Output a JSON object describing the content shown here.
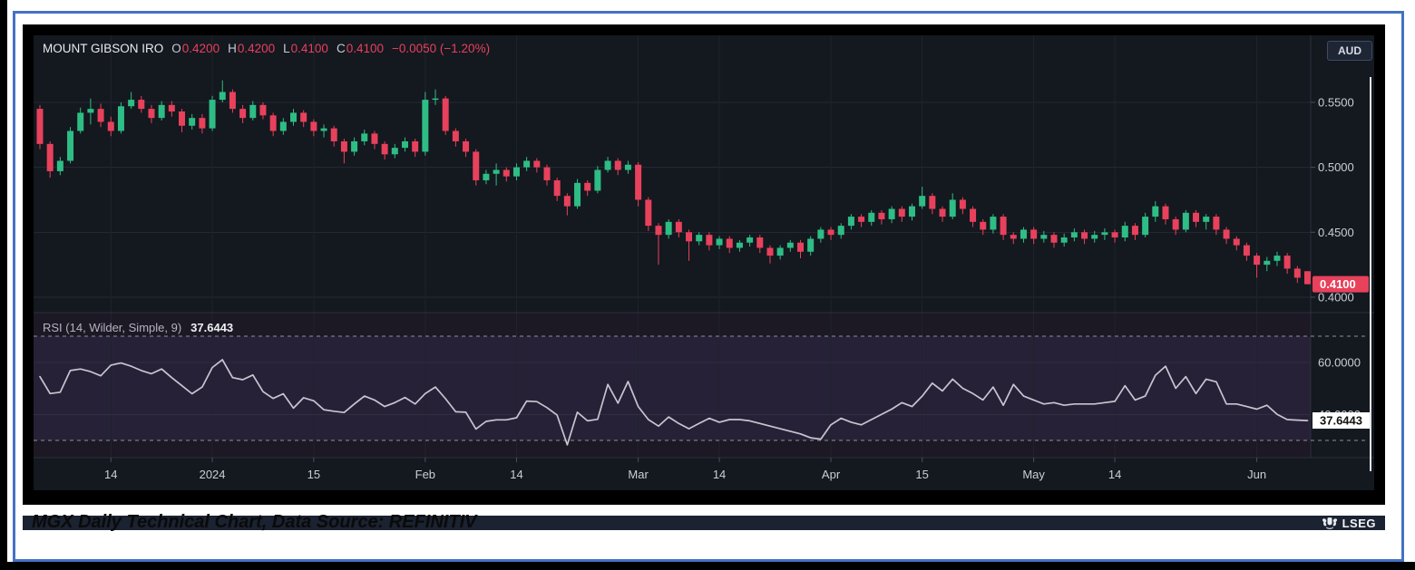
{
  "window": {
    "currency_badge": "AUD"
  },
  "legend": {
    "title": "MOUNT GIBSON IRO",
    "o_label": "O",
    "o_value": "0.4200",
    "h_label": "H",
    "h_value": "0.4200",
    "l_label": "L",
    "l_value": "0.4100",
    "c_label": "C",
    "c_value": "0.4100",
    "change": "−0.0050 (−1.20%)"
  },
  "price_axis": {
    "tick_labels": [
      "0.5500",
      "0.5000",
      "0.4500",
      "0.4000"
    ],
    "last_badge": "0.4100"
  },
  "rsi_panel": {
    "label": "RSI (14, Wilder, Simple, 9)",
    "value_label": "37.6443",
    "axis_tick_60": "60.0000",
    "axis_tick_40": "40.0000",
    "badge": "37.6443"
  },
  "footer": {
    "brand": "LSEG",
    "logo_icon": "lseg-crest-icon"
  },
  "caption": "MGX Daily Technical Chart, Data Source: REFINITIV",
  "colors": {
    "up": "#2ebd85",
    "down": "#e8415c",
    "background": "#14181f",
    "grid": "#232833",
    "vgrid": "#1e232b",
    "separator": "#2a313c",
    "axis_text": "#c9ced8",
    "tick_mark": "#4a505c",
    "rsi_zone_bg": "#1c1824",
    "rsi_band_bg": "#272138",
    "rsi_dash": "#938b9f",
    "rsi_grid": "#332d42",
    "rsi_line": "#c8c5d0",
    "badge_down_bg": "#e8415c",
    "badge_down_text": "#ffffff",
    "rsi_badge_bg": "#ffffff",
    "rsi_badge_text": "#111111",
    "white_rule": "#e2e5ea",
    "border_blue": "#4472c4",
    "frame": "#000000"
  },
  "chart_data": [
    {
      "type": "candlestick",
      "title": "MOUNT GIBSON IRO",
      "currency": "AUD",
      "last_ohlc": {
        "open": 0.42,
        "high": 0.42,
        "low": 0.41,
        "close": 0.41,
        "change": -0.005,
        "change_pct": -1.2
      },
      "ylim": [
        0.393,
        0.6
      ],
      "yticks": [
        {
          "v": 0.55,
          "label": "0.5500"
        },
        {
          "v": 0.5,
          "label": "0.5000"
        },
        {
          "v": 0.45,
          "label": "0.4500"
        },
        {
          "v": 0.4,
          "label": "0.4000"
        }
      ],
      "last_price": 0.41,
      "x_ticks": [
        {
          "label": "14",
          "index": 7
        },
        {
          "label": "2024",
          "index": 17
        },
        {
          "label": "15",
          "index": 27
        },
        {
          "label": "Feb",
          "index": 38
        },
        {
          "label": "14",
          "index": 47
        },
        {
          "label": "Mar",
          "index": 59
        },
        {
          "label": "14",
          "index": 67
        },
        {
          "label": "Apr",
          "index": 78
        },
        {
          "label": "15",
          "index": 87
        },
        {
          "label": "May",
          "index": 98
        },
        {
          "label": "14",
          "index": 106
        },
        {
          "label": "Jun",
          "index": 120
        }
      ],
      "candles": [
        [
          0.545,
          0.548,
          0.514,
          0.518
        ],
        [
          0.518,
          0.52,
          0.492,
          0.497
        ],
        [
          0.497,
          0.508,
          0.494,
          0.505
        ],
        [
          0.505,
          0.531,
          0.503,
          0.528
        ],
        [
          0.528,
          0.546,
          0.526,
          0.542
        ],
        [
          0.542,
          0.553,
          0.533,
          0.545
        ],
        [
          0.545,
          0.549,
          0.531,
          0.535
        ],
        [
          0.535,
          0.539,
          0.524,
          0.528
        ],
        [
          0.528,
          0.55,
          0.526,
          0.547
        ],
        [
          0.547,
          0.558,
          0.545,
          0.552
        ],
        [
          0.552,
          0.555,
          0.542,
          0.545
        ],
        [
          0.545,
          0.548,
          0.534,
          0.538
        ],
        [
          0.538,
          0.551,
          0.536,
          0.548
        ],
        [
          0.548,
          0.551,
          0.539,
          0.543
        ],
        [
          0.543,
          0.545,
          0.527,
          0.532
        ],
        [
          0.532,
          0.541,
          0.529,
          0.538
        ],
        [
          0.538,
          0.541,
          0.526,
          0.53
        ],
        [
          0.53,
          0.555,
          0.528,
          0.552
        ],
        [
          0.552,
          0.567,
          0.55,
          0.558
        ],
        [
          0.558,
          0.56,
          0.542,
          0.545
        ],
        [
          0.545,
          0.548,
          0.534,
          0.538
        ],
        [
          0.538,
          0.551,
          0.536,
          0.548
        ],
        [
          0.548,
          0.55,
          0.537,
          0.54
        ],
        [
          0.54,
          0.542,
          0.524,
          0.528
        ],
        [
          0.528,
          0.538,
          0.525,
          0.535
        ],
        [
          0.535,
          0.545,
          0.532,
          0.542
        ],
        [
          0.542,
          0.544,
          0.531,
          0.535
        ],
        [
          0.535,
          0.537,
          0.524,
          0.528
        ],
        [
          0.528,
          0.533,
          0.523,
          0.53
        ],
        [
          0.53,
          0.532,
          0.516,
          0.52
        ],
        [
          0.52,
          0.522,
          0.503,
          0.512
        ],
        [
          0.512,
          0.523,
          0.509,
          0.52
        ],
        [
          0.52,
          0.529,
          0.517,
          0.526
        ],
        [
          0.526,
          0.528,
          0.514,
          0.518
        ],
        [
          0.518,
          0.52,
          0.506,
          0.51
        ],
        [
          0.51,
          0.518,
          0.507,
          0.515
        ],
        [
          0.515,
          0.523,
          0.512,
          0.52
        ],
        [
          0.52,
          0.522,
          0.508,
          0.512
        ],
        [
          0.512,
          0.558,
          0.509,
          0.552
        ],
        [
          0.552,
          0.56,
          0.548,
          0.553
        ],
        [
          0.553,
          0.555,
          0.525,
          0.528
        ],
        [
          0.528,
          0.53,
          0.516,
          0.52
        ],
        [
          0.52,
          0.522,
          0.508,
          0.512
        ],
        [
          0.512,
          0.514,
          0.486,
          0.49
        ],
        [
          0.49,
          0.498,
          0.487,
          0.495
        ],
        [
          0.495,
          0.503,
          0.486,
          0.498
        ],
        [
          0.498,
          0.5,
          0.489,
          0.493
        ],
        [
          0.493,
          0.503,
          0.49,
          0.5
        ],
        [
          0.5,
          0.508,
          0.497,
          0.505
        ],
        [
          0.505,
          0.507,
          0.496,
          0.5
        ],
        [
          0.5,
          0.502,
          0.486,
          0.49
        ],
        [
          0.49,
          0.492,
          0.474,
          0.478
        ],
        [
          0.478,
          0.48,
          0.463,
          0.47
        ],
        [
          0.47,
          0.491,
          0.468,
          0.488
        ],
        [
          0.488,
          0.49,
          0.478,
          0.482
        ],
        [
          0.482,
          0.501,
          0.48,
          0.498
        ],
        [
          0.498,
          0.508,
          0.496,
          0.505
        ],
        [
          0.505,
          0.507,
          0.494,
          0.498
        ],
        [
          0.498,
          0.505,
          0.495,
          0.502
        ],
        [
          0.502,
          0.504,
          0.47,
          0.475
        ],
        [
          0.475,
          0.477,
          0.451,
          0.455
        ],
        [
          0.455,
          0.457,
          0.425,
          0.448
        ],
        [
          0.448,
          0.46,
          0.445,
          0.458
        ],
        [
          0.458,
          0.46,
          0.446,
          0.45
        ],
        [
          0.45,
          0.452,
          0.428,
          0.443
        ],
        [
          0.443,
          0.45,
          0.44,
          0.448
        ],
        [
          0.448,
          0.45,
          0.436,
          0.44
        ],
        [
          0.44,
          0.447,
          0.437,
          0.445
        ],
        [
          0.445,
          0.447,
          0.434,
          0.438
        ],
        [
          0.438,
          0.444,
          0.435,
          0.442
        ],
        [
          0.442,
          0.448,
          0.439,
          0.446
        ],
        [
          0.446,
          0.448,
          0.434,
          0.438
        ],
        [
          0.438,
          0.44,
          0.426,
          0.432
        ],
        [
          0.432,
          0.44,
          0.429,
          0.438
        ],
        [
          0.438,
          0.444,
          0.435,
          0.442
        ],
        [
          0.442,
          0.444,
          0.43,
          0.435
        ],
        [
          0.435,
          0.447,
          0.432,
          0.445
        ],
        [
          0.445,
          0.454,
          0.442,
          0.452
        ],
        [
          0.452,
          0.454,
          0.444,
          0.448
        ],
        [
          0.448,
          0.457,
          0.445,
          0.455
        ],
        [
          0.455,
          0.464,
          0.452,
          0.462
        ],
        [
          0.462,
          0.464,
          0.454,
          0.458
        ],
        [
          0.458,
          0.467,
          0.455,
          0.465
        ],
        [
          0.465,
          0.467,
          0.456,
          0.46
        ],
        [
          0.46,
          0.47,
          0.457,
          0.468
        ],
        [
          0.468,
          0.47,
          0.458,
          0.462
        ],
        [
          0.462,
          0.472,
          0.459,
          0.47
        ],
        [
          0.47,
          0.485,
          0.468,
          0.478
        ],
        [
          0.478,
          0.48,
          0.464,
          0.468
        ],
        [
          0.468,
          0.47,
          0.458,
          0.462
        ],
        [
          0.462,
          0.48,
          0.46,
          0.475
        ],
        [
          0.475,
          0.477,
          0.464,
          0.468
        ],
        [
          0.468,
          0.47,
          0.454,
          0.458
        ],
        [
          0.458,
          0.46,
          0.448,
          0.452
        ],
        [
          0.452,
          0.464,
          0.449,
          0.462
        ],
        [
          0.462,
          0.464,
          0.444,
          0.448
        ],
        [
          0.448,
          0.45,
          0.441,
          0.445
        ],
        [
          0.445,
          0.454,
          0.442,
          0.452
        ],
        [
          0.452,
          0.454,
          0.441,
          0.445
        ],
        [
          0.445,
          0.451,
          0.442,
          0.448
        ],
        [
          0.448,
          0.45,
          0.438,
          0.442
        ],
        [
          0.442,
          0.449,
          0.439,
          0.446
        ],
        [
          0.446,
          0.453,
          0.443,
          0.45
        ],
        [
          0.45,
          0.452,
          0.441,
          0.445
        ],
        [
          0.445,
          0.451,
          0.442,
          0.448
        ],
        [
          0.448,
          0.453,
          0.444,
          0.45
        ],
        [
          0.45,
          0.452,
          0.442,
          0.446
        ],
        [
          0.446,
          0.458,
          0.443,
          0.455
        ],
        [
          0.455,
          0.457,
          0.444,
          0.448
        ],
        [
          0.448,
          0.465,
          0.446,
          0.462
        ],
        [
          0.462,
          0.474,
          0.458,
          0.47
        ],
        [
          0.47,
          0.472,
          0.456,
          0.46
        ],
        [
          0.46,
          0.462,
          0.448,
          0.452
        ],
        [
          0.452,
          0.467,
          0.45,
          0.465
        ],
        [
          0.465,
          0.467,
          0.454,
          0.458
        ],
        [
          0.458,
          0.464,
          0.452,
          0.462
        ],
        [
          0.462,
          0.464,
          0.448,
          0.452
        ],
        [
          0.452,
          0.454,
          0.441,
          0.445
        ],
        [
          0.445,
          0.447,
          0.436,
          0.44
        ],
        [
          0.44,
          0.442,
          0.428,
          0.432
        ],
        [
          0.432,
          0.434,
          0.415,
          0.425
        ],
        [
          0.425,
          0.431,
          0.42,
          0.428
        ],
        [
          0.428,
          0.435,
          0.424,
          0.432
        ],
        [
          0.432,
          0.434,
          0.418,
          0.422
        ],
        [
          0.422,
          0.424,
          0.411,
          0.415
        ],
        [
          0.42,
          0.42,
          0.41,
          0.41
        ]
      ]
    },
    {
      "type": "line",
      "name": "RSI (14, Wilder, Simple, 9)",
      "last_value": 37.6443,
      "upper_level": 70,
      "lower_level": 30,
      "gridline_levels": [
        60,
        40
      ],
      "values": [
        54.5,
        48,
        48.5,
        56.8,
        57.4,
        56.4,
        54.8,
        58.9,
        59.7,
        58.5,
        56.8,
        55.6,
        57.4,
        54.1,
        51,
        47.9,
        50.5,
        58,
        61,
        54.1,
        53.3,
        55.1,
        48.7,
        46.1,
        47.9,
        42.4,
        46.4,
        45.2,
        41.8,
        41.2,
        40.7,
        44,
        47,
        45.5,
        43,
        44.5,
        46.5,
        44,
        48,
        50.5,
        46,
        41,
        40.8,
        34.4,
        37.3,
        37.9,
        37.9,
        38.7,
        45.1,
        44.9,
        42.6,
        39.7,
        28.3,
        40.8,
        37.5,
        38.1,
        51.5,
        44.3,
        52.6,
        43,
        38,
        35.5,
        39,
        36.5,
        34.5,
        36.5,
        38.5,
        37,
        38,
        38,
        37.5,
        36.5,
        35.5,
        34.5,
        33.5,
        32.5,
        31,
        30.5,
        36,
        38.5,
        37,
        36,
        38,
        40,
        42,
        44.5,
        43,
        47,
        52,
        49,
        53.5,
        50,
        48,
        45.5,
        50.5,
        43.5,
        51.5,
        47,
        45.5,
        44,
        44.5,
        43.5,
        44,
        44,
        44,
        44.5,
        45,
        51,
        45.5,
        47,
        55,
        58.5,
        50,
        54.5,
        48,
        53.5,
        52.5,
        44,
        44,
        43,
        42,
        43.5,
        40,
        38,
        37.8,
        37.6
      ]
    }
  ]
}
